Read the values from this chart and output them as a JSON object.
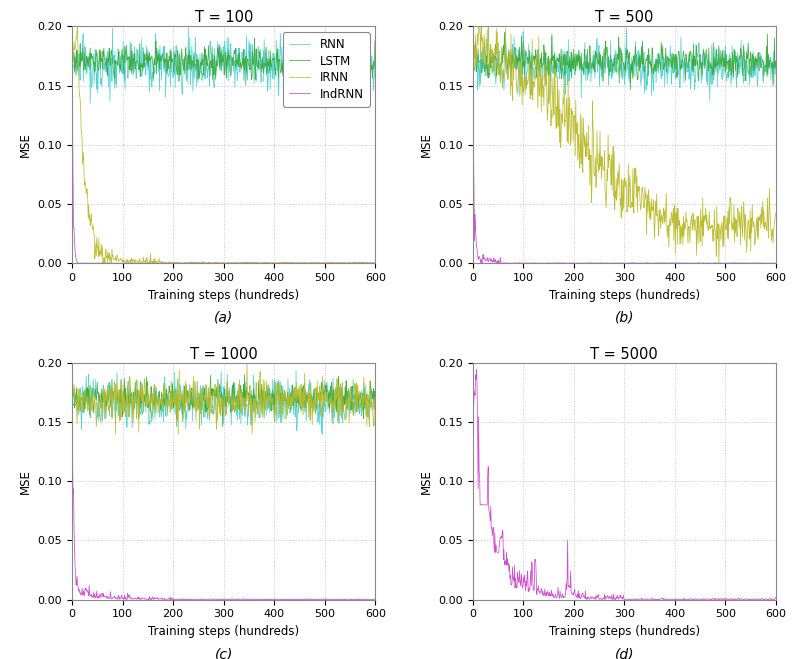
{
  "panels": [
    {
      "title": "T = 100",
      "label": "(a)",
      "T": 100
    },
    {
      "title": "T = 500",
      "label": "(b)",
      "T": 500
    },
    {
      "title": "T = 1000",
      "label": "(c)",
      "T": 1000
    },
    {
      "title": "T = 5000",
      "label": "(d)",
      "T": 5000
    }
  ],
  "colors": {
    "RNN": "#4ECFCF",
    "LSTM": "#3AAA3A",
    "IRNN": "#BABA28",
    "IndRNN": "#CC44CC"
  },
  "legend_labels": [
    "RNN",
    "LSTM",
    "IRNN",
    "IndRNN"
  ],
  "xlabel": "Training steps (hundreds)",
  "ylabel": "MSE",
  "xlim": [
    0,
    600
  ],
  "ylim": [
    0.0,
    0.2
  ],
  "yticks": [
    0.0,
    0.05,
    0.1,
    0.15,
    0.2
  ],
  "xticks": [
    0,
    100,
    200,
    300,
    400,
    500,
    600
  ],
  "grid_color": "#bbbbbb",
  "bg_color": "#ffffff",
  "n_steps": 600
}
